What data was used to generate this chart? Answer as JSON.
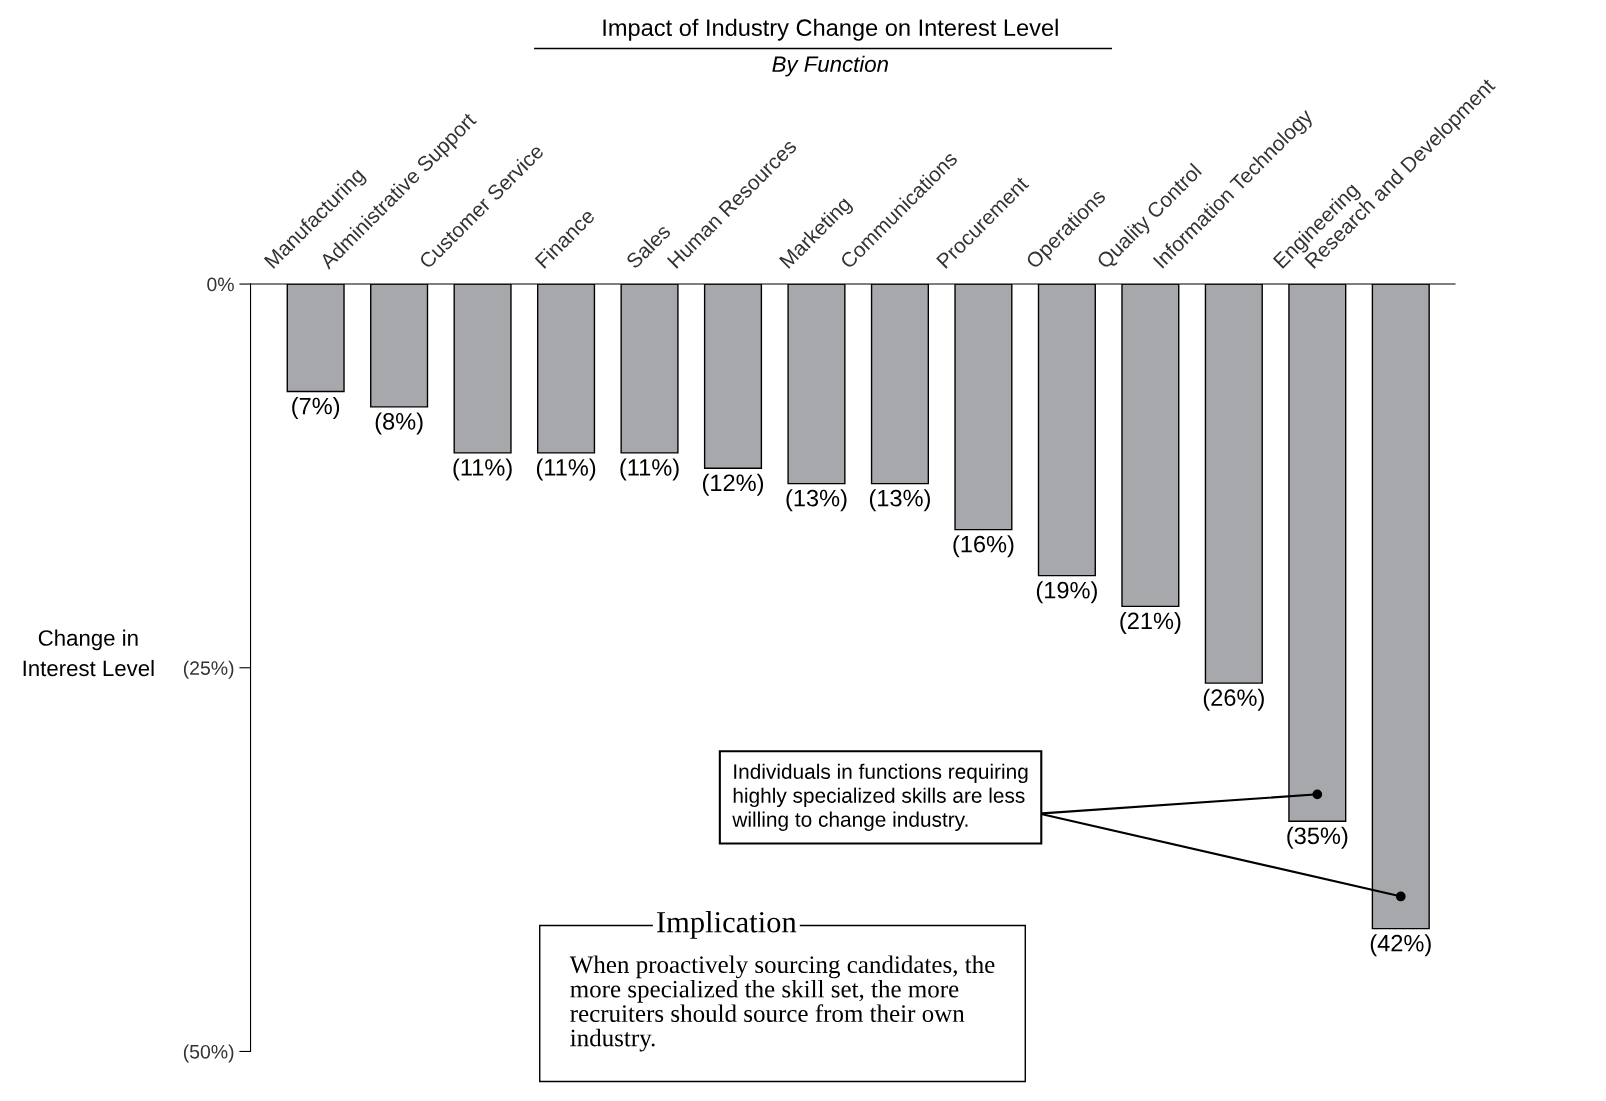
{
  "chart_data": {
    "type": "bar",
    "title": "Impact of Industry Change on Interest Level",
    "subtitle": "By Function",
    "ylabel": "Change in\nInterest Level",
    "categories": [
      "Manufacturing",
      "Administrative Support",
      "Customer Service",
      "Finance",
      "Sales",
      "Human Resources",
      "Marketing",
      "Communications",
      "Procurement",
      "Operations",
      "Quality Control",
      "Information Technology",
      "Engineering",
      "Research and Development"
    ],
    "values": [
      -7,
      -8,
      -11,
      -11,
      -11,
      -12,
      -13,
      -13,
      -16,
      -19,
      -21,
      -26,
      -35,
      -42
    ],
    "value_labels": [
      "(7%)",
      "(8%)",
      "(11%)",
      "(11%)",
      "(11%)",
      "(12%)",
      "(13%)",
      "(13%)",
      "(16%)",
      "(19%)",
      "(21%)",
      "(26%)",
      "(35%)",
      "(42%)"
    ],
    "color": "#a7a8ac",
    "ylim": [
      -50,
      0
    ],
    "yticks": [
      {
        "value": 0,
        "label": "0%"
      },
      {
        "value": -25,
        "label": "(25%)"
      },
      {
        "value": -50,
        "label": "(50%)"
      }
    ],
    "grid": false,
    "annotations": [
      "Individuals in functions requiring\nhighly specialized skills are less\nwilling to change industry.",
      "Implication",
      "When proactively sourcing candidates, the\nmore specialized the skill set, the more\nrecruiters should source from their own\nindustry."
    ]
  }
}
